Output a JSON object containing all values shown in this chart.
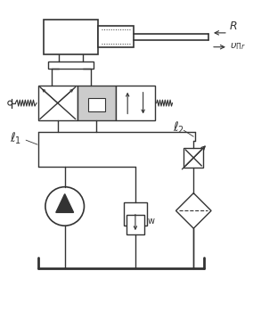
{
  "bg_color": "#ffffff",
  "line_color": "#333333",
  "label_R": "R",
  "label_v": "$\\upsilon_{\\mathit{\\Pi\\!r}}$",
  "label_l1": "$\\ell_1$",
  "label_l2": "$\\ell_2$",
  "label_w": "w"
}
